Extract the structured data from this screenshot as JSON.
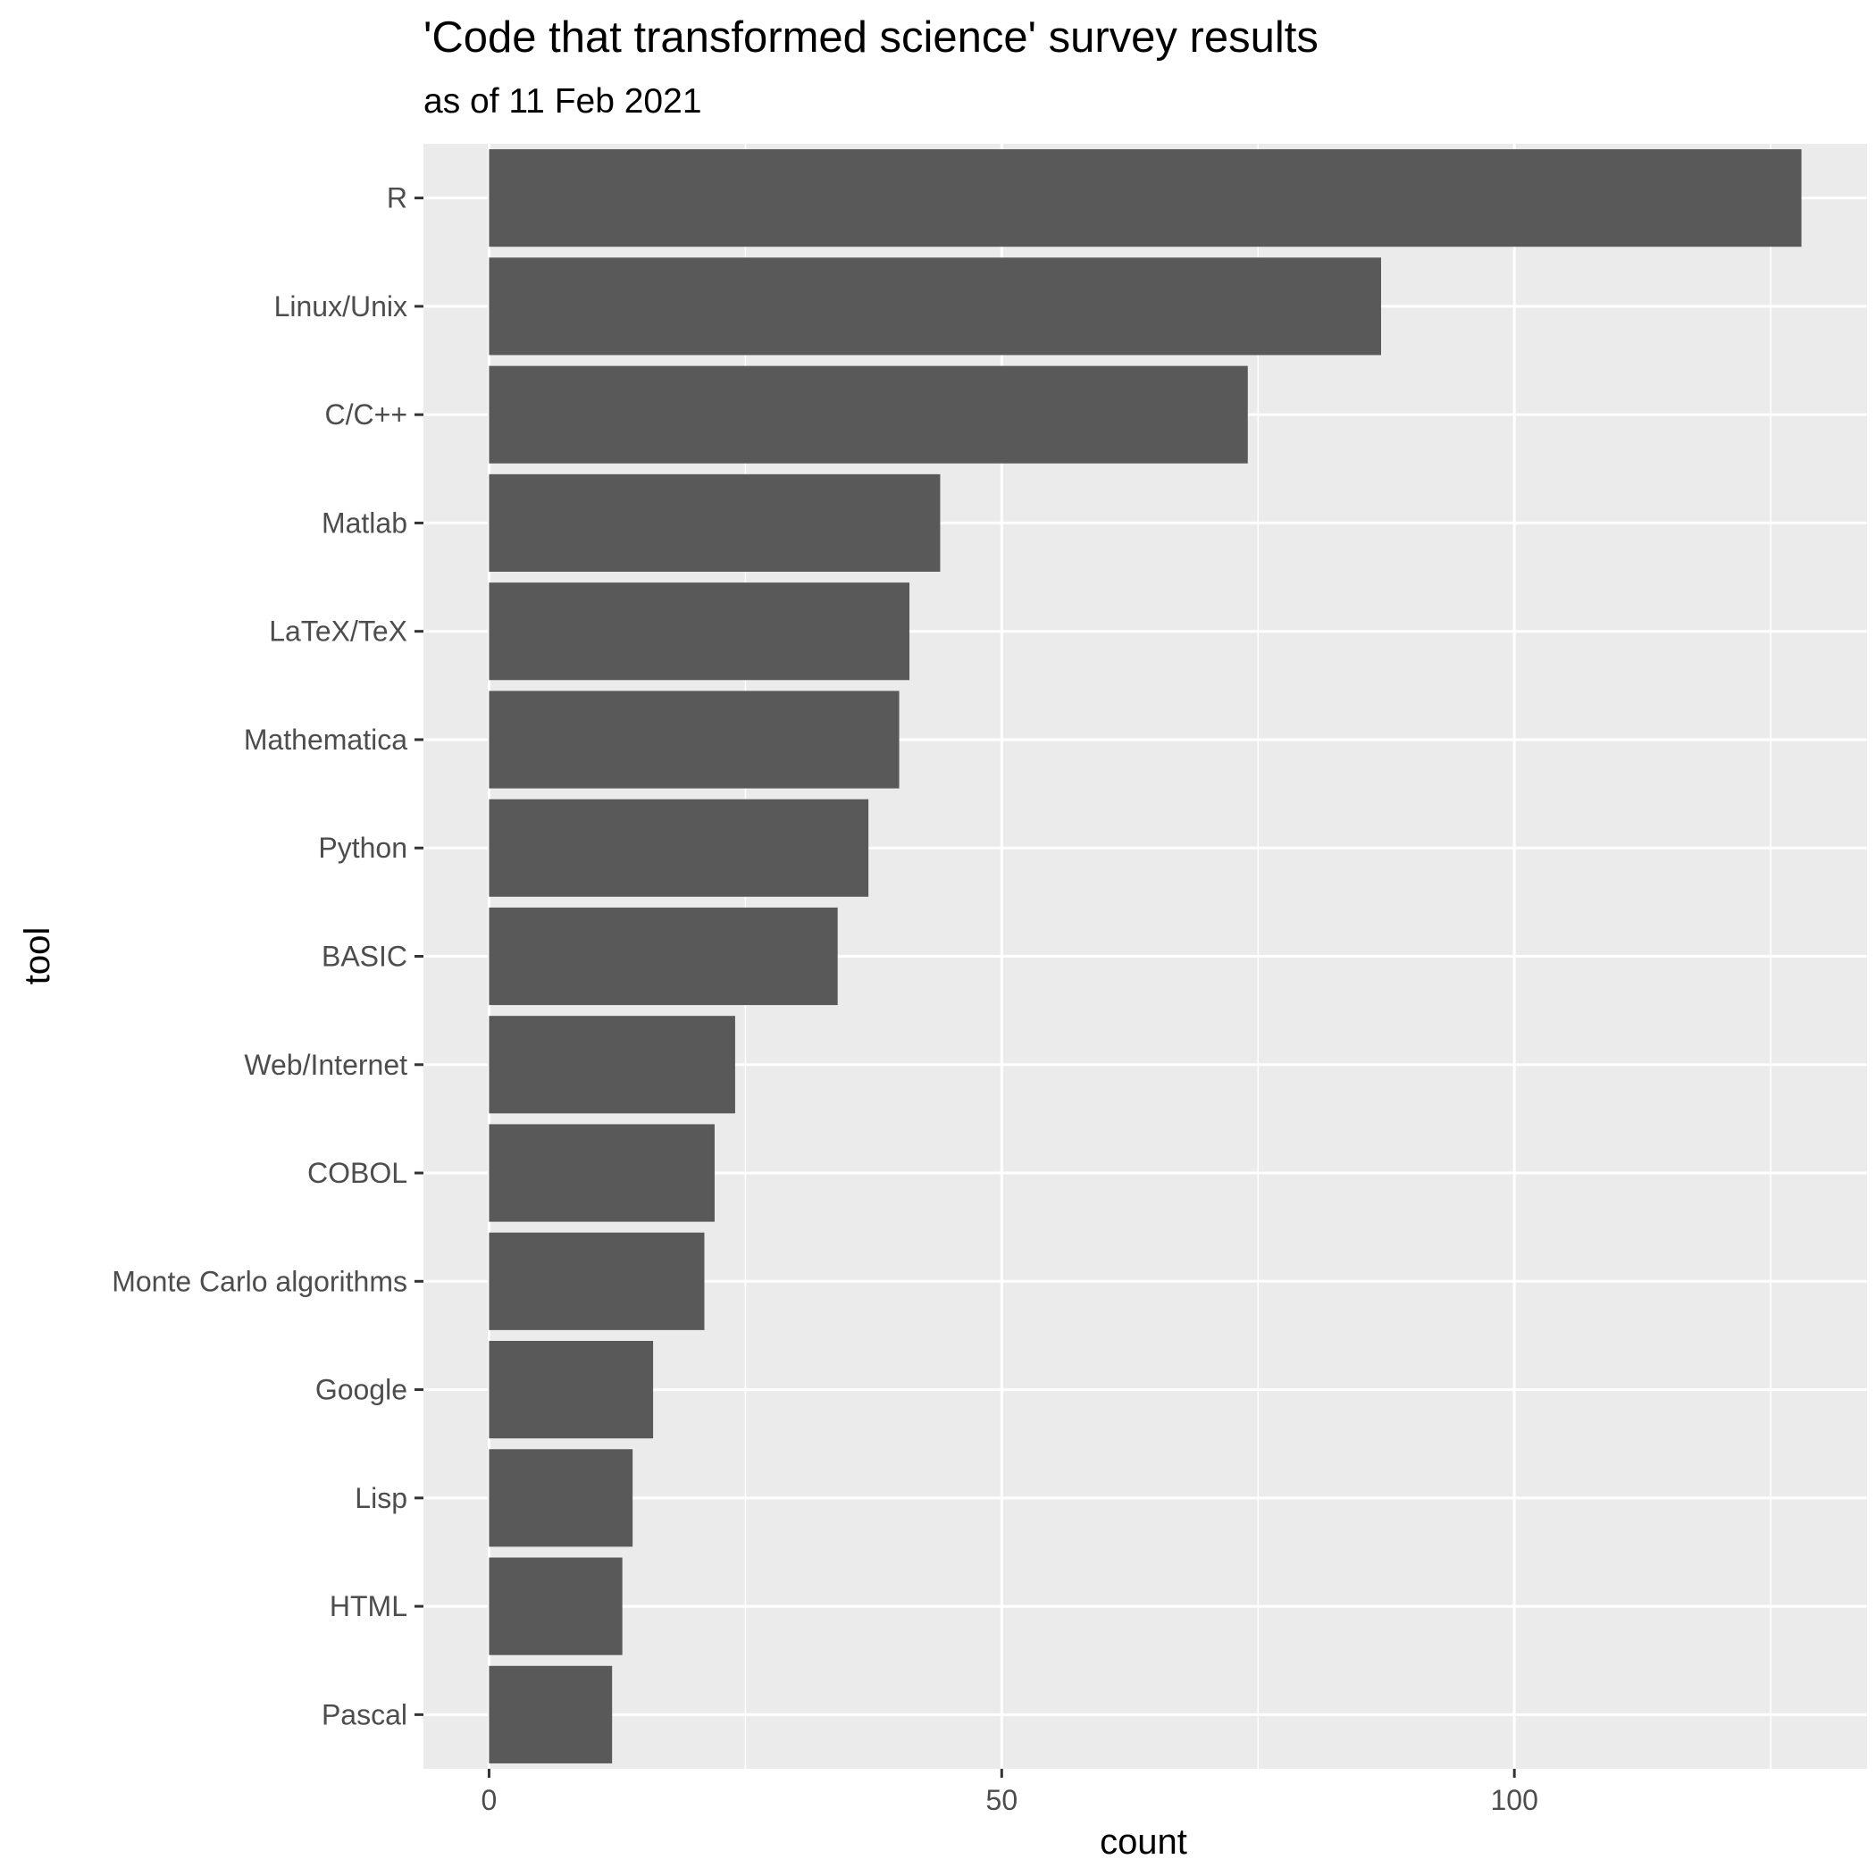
{
  "chart_data": {
    "type": "bar",
    "orientation": "horizontal",
    "title": "'Code that transformed science' survey results",
    "subtitle": "as of 11 Feb 2021",
    "xlabel": "count",
    "ylabel": "tool",
    "categories": [
      "R",
      "Linux/Unix",
      "C/C++",
      "Matlab",
      "LaTeX/TeX",
      "Mathematica",
      "Python",
      "BASIC",
      "Web/Internet",
      "COBOL",
      "Monte Carlo algorithms",
      "Google",
      "Lisp",
      "HTML",
      "Pascal"
    ],
    "values": [
      128,
      87,
      74,
      44,
      41,
      40,
      37,
      34,
      24,
      22,
      21,
      16,
      14,
      13,
      12
    ],
    "xlim": [
      -6.4,
      134.4
    ],
    "xticks": [
      0,
      50,
      100
    ],
    "xtick_labels": [
      "0",
      "50",
      "100"
    ],
    "grid": true,
    "colors": {
      "bar": "#595959",
      "panel": "#ebebeb",
      "grid": "#ffffff",
      "tick_text": "#4d4d4d"
    }
  }
}
